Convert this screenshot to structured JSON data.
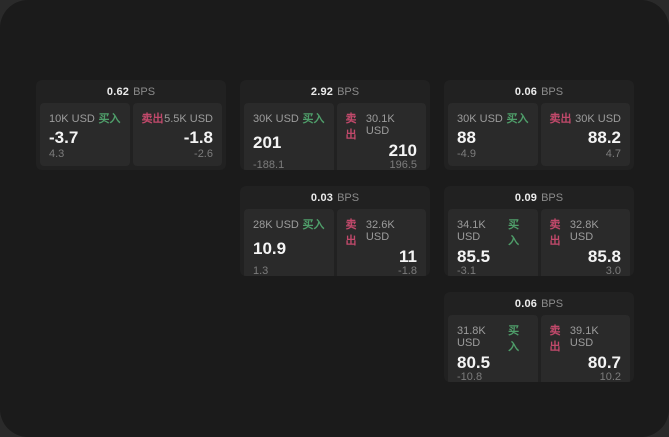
{
  "labels": {
    "bps_unit": "BPS",
    "buy": "买入",
    "sell": "卖出"
  },
  "colors": {
    "panel_bg": "#1b1b1b",
    "card_bg": "#212121",
    "subcard_bg": "#2a2a2a",
    "buy_green": "#4f9e6a",
    "sell_red": "#c1496b",
    "value_white": "#f4f4f4",
    "muted_gray": "#7c7c7c"
  },
  "cards": [
    {
      "bps": "0.62",
      "buy": {
        "size": "10K USD",
        "price": "-3.7",
        "delta": "4.3"
      },
      "sell": {
        "size": "5.5K USD",
        "price": "-1.8",
        "delta": "-2.6"
      }
    },
    {
      "bps": "2.92",
      "buy": {
        "size": "30K USD",
        "price": "201",
        "delta": "-188.1"
      },
      "sell": {
        "size": "30.1K USD",
        "price": "210",
        "delta": "196.5"
      }
    },
    {
      "bps": "0.06",
      "buy": {
        "size": "30K USD",
        "price": "88",
        "delta": "-4.9"
      },
      "sell": {
        "size": "30K USD",
        "price": "88.2",
        "delta": "4.7"
      }
    },
    {
      "bps": "0.03",
      "buy": {
        "size": "28K USD",
        "price": "10.9",
        "delta": "1.3"
      },
      "sell": {
        "size": "32.6K USD",
        "price": "11",
        "delta": "-1.8"
      }
    },
    {
      "bps": "0.09",
      "buy": {
        "size": "34.1K USD",
        "price": "85.5",
        "delta": "-3.1"
      },
      "sell": {
        "size": "32.8K USD",
        "price": "85.8",
        "delta": "3.0"
      }
    },
    {
      "bps": "0.06",
      "buy": {
        "size": "31.8K USD",
        "price": "80.5",
        "delta": "-10.8"
      },
      "sell": {
        "size": "39.1K USD",
        "price": "80.7",
        "delta": "10.2"
      }
    }
  ]
}
